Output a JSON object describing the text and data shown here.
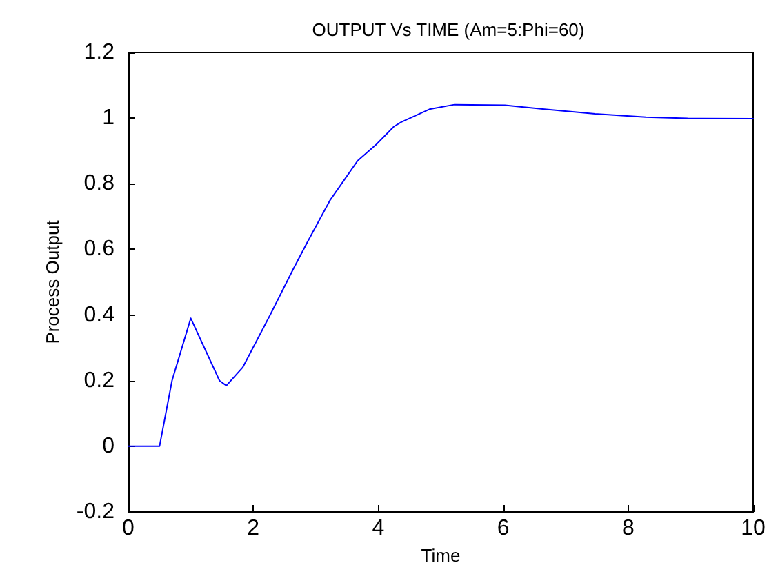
{
  "chart_data": {
    "type": "line",
    "title": "OUTPUT Vs TIME (Am=5:Phi=60)",
    "xlabel": "Time",
    "ylabel": "Process Output",
    "x": [
      0,
      0.5,
      0.7,
      1,
      1.46,
      1.57,
      1.83,
      2.27,
      2.64,
      2.86,
      3.23,
      3.67,
      3.97,
      4.25,
      4.37,
      4.82,
      5.22,
      6.03,
      6.66,
      7.47,
      8.28,
      8.95,
      10
    ],
    "series": [
      {
        "color": "#0000ff",
        "values": [
          0,
          0,
          0.2,
          0.39,
          0.2,
          0.185,
          0.24,
          0.4,
          0.54,
          0.62,
          0.75,
          0.87,
          0.92,
          0.974,
          0.988,
          1.027,
          1.041,
          1.039,
          1.027,
          1.013,
          1.003,
          0.999,
          0.998
        ]
      }
    ],
    "xlim": [
      0,
      10
    ],
    "xticks": [
      0,
      2,
      4,
      6,
      8,
      10
    ],
    "ylim": [
      -0.2,
      1.2
    ],
    "yticks": [
      -0.2,
      0,
      0.2,
      0.4,
      0.6,
      0.8,
      1,
      1.2
    ],
    "grid": false,
    "marker": "none",
    "line_style": "solid"
  }
}
